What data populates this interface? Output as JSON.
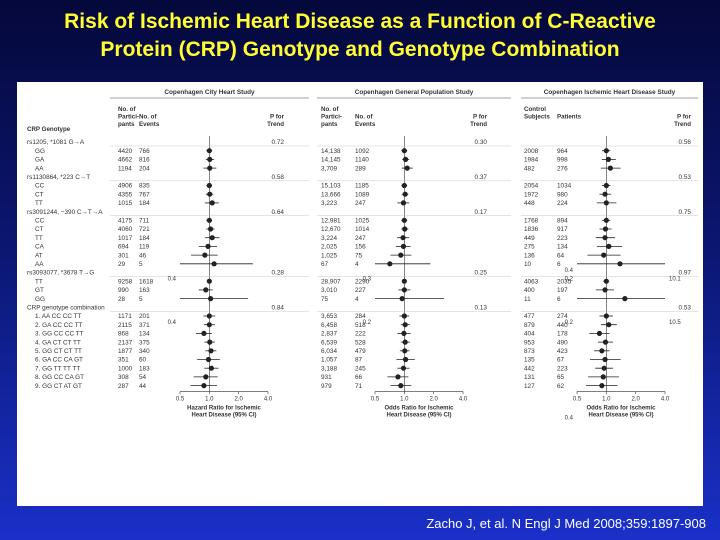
{
  "title": {
    "line1": "Risk of Ischemic Heart Disease as a Function of C-Reactive",
    "line2": "Protein (CRP) Genotype and Genotype Combination"
  },
  "citation": "Zacho J, et al. N Engl J Med 2008;359:1897-908",
  "colors": {
    "title": "#ffff33",
    "panel_bg": "#ffffff",
    "point": "#222222",
    "ref_line": "#333333"
  },
  "figure": {
    "row_header": "CRP Genotype",
    "studies": [
      {
        "name": "Copenhagen City Heart Study",
        "col1": [
          "No. of",
          "Partici-",
          "pants"
        ],
        "col2": [
          "No. of",
          "Events"
        ],
        "col3": [
          "P for",
          "Trend"
        ],
        "axis_label": [
          "Hazard Ratio for Ischemic",
          "Heart Disease (95% CI)"
        ],
        "ticks": [
          "0.5",
          "1.0",
          "2.0",
          "4.0"
        ],
        "outside": [
          {
            "row": 15,
            "side": "left",
            "label": "0.4"
          },
          {
            "row": 20,
            "side": "left",
            "label": "0.4"
          }
        ]
      },
      {
        "name": "Copenhagen General Population Study",
        "col1": [
          "No. of",
          "Partici-",
          "pants"
        ],
        "col2": [
          "No. of",
          "Events"
        ],
        "col3": [
          "P for",
          "Trend"
        ],
        "axis_label": [
          "Odds Ratio for Ischemic",
          "Heart Disease (95% CI)"
        ],
        "ticks": [
          "0.5",
          "1.0",
          "2.0",
          "4.0"
        ],
        "outside": [
          {
            "row": 15,
            "side": "left",
            "label": "0.3"
          },
          {
            "row": 20,
            "side": "left",
            "label": "0.2"
          }
        ]
      },
      {
        "name": "Copenhagen Ischemic Heart Disease Study",
        "col1": [
          "Control",
          "Subjects"
        ],
        "col2": [
          "Patients"
        ],
        "col3": [
          "P for",
          "Trend"
        ],
        "axis_label": [
          "Odds Ratio for Ischemic",
          "Heart Disease (95% CI)"
        ],
        "ticks": [
          "0.5",
          "1.0",
          "2.0",
          "4.0"
        ],
        "outside": [
          {
            "row": 14,
            "side": "left",
            "label": "0.4"
          },
          {
            "row": 15,
            "side": "left",
            "label": "0.2"
          },
          {
            "row": 15,
            "side": "right",
            "label": "10.1"
          },
          {
            "row": 20,
            "side": "left",
            "label": "0.2"
          },
          {
            "row": 20,
            "side": "right",
            "label": "10.5"
          },
          {
            "row": 31,
            "side": "left",
            "label": "0.4"
          }
        ]
      }
    ],
    "rows": [
      {
        "label": "rs1205, *1081 G→A",
        "type": "snp",
        "p": [
          "0.72",
          "0.30",
          "0.56"
        ]
      },
      {
        "label": "GG",
        "type": "g",
        "n": [
          [
            "4420",
            "766"
          ],
          [
            "14,138",
            "1092"
          ],
          [
            "2008",
            "964"
          ]
        ],
        "est": [
          1.0,
          1.0,
          1.0
        ],
        "ci": [
          [
            0.93,
            1.07
          ],
          [
            0.93,
            1.07
          ],
          [
            0.9,
            1.1
          ]
        ]
      },
      {
        "label": "GA",
        "type": "g",
        "n": [
          [
            "4662",
            "816"
          ],
          [
            "14,145",
            "1140"
          ],
          [
            "1984",
            "998"
          ]
        ],
        "est": [
          1.01,
          1.03,
          1.05
        ],
        "ci": [
          [
            0.92,
            1.12
          ],
          [
            0.95,
            1.12
          ],
          [
            0.9,
            1.25
          ]
        ]
      },
      {
        "label": "AA",
        "type": "g",
        "n": [
          [
            "1194",
            "204"
          ],
          [
            "3,709",
            "289"
          ],
          [
            "482",
            "276"
          ]
        ],
        "est": [
          1.01,
          1.07,
          1.1
        ],
        "ci": [
          [
            0.87,
            1.18
          ],
          [
            0.94,
            1.22
          ],
          [
            0.88,
            1.4
          ]
        ]
      },
      {
        "label": "rs1130864, *223 C→T",
        "type": "snp",
        "p": [
          "0.58",
          "0.37",
          "0.53"
        ]
      },
      {
        "label": "CC",
        "type": "g",
        "n": [
          [
            "4906",
            "835"
          ],
          [
            "15,103",
            "1185"
          ],
          [
            "2054",
            "1034"
          ]
        ],
        "est": [
          1.0,
          1.0,
          1.0
        ],
        "ci": [
          [
            0.93,
            1.07
          ],
          [
            0.93,
            1.07
          ],
          [
            0.9,
            1.1
          ]
        ]
      },
      {
        "label": "CT",
        "type": "g",
        "n": [
          [
            "4355",
            "767"
          ],
          [
            "13,666",
            "1089"
          ],
          [
            "1972",
            "980"
          ]
        ],
        "est": [
          1.01,
          1.02,
          0.97
        ],
        "ci": [
          [
            0.92,
            1.1
          ],
          [
            0.94,
            1.1
          ],
          [
            0.85,
            1.12
          ]
        ]
      },
      {
        "label": "TT",
        "type": "g",
        "n": [
          [
            "1015",
            "184"
          ],
          [
            "3,223",
            "247"
          ],
          [
            "448",
            "224"
          ]
        ],
        "est": [
          1.07,
          0.98,
          1.0
        ],
        "ci": [
          [
            0.9,
            1.25
          ],
          [
            0.85,
            1.12
          ],
          [
            0.8,
            1.27
          ]
        ]
      },
      {
        "label": "rs3091244, −390 C→T→A",
        "type": "snp",
        "p": [
          "0.64",
          "0.17",
          "0.75"
        ]
      },
      {
        "label": "CC",
        "type": "g",
        "n": [
          [
            "4175",
            "711"
          ],
          [
            "12,981",
            "1025"
          ],
          [
            "1768",
            "894"
          ]
        ],
        "est": [
          1.0,
          1.0,
          1.0
        ],
        "ci": [
          [
            0.93,
            1.07
          ],
          [
            0.93,
            1.07
          ],
          [
            0.9,
            1.1
          ]
        ]
      },
      {
        "label": "CT",
        "type": "g",
        "n": [
          [
            "4060",
            "721"
          ],
          [
            "12,670",
            "1014"
          ],
          [
            "1836",
            "917"
          ]
        ],
        "est": [
          1.03,
          1.01,
          0.98
        ],
        "ci": [
          [
            0.93,
            1.13
          ],
          [
            0.93,
            1.1
          ],
          [
            0.85,
            1.13
          ]
        ]
      },
      {
        "label": "TT",
        "type": "g",
        "n": [
          [
            "1017",
            "184"
          ],
          [
            "3,224",
            "247"
          ],
          [
            "449",
            "223"
          ]
        ],
        "est": [
          1.07,
          0.97,
          0.97
        ],
        "ci": [
          [
            0.9,
            1.27
          ],
          [
            0.84,
            1.12
          ],
          [
            0.78,
            1.23
          ]
        ]
      },
      {
        "label": "CA",
        "type": "g",
        "n": [
          [
            "694",
            "119"
          ],
          [
            "2,025",
            "156"
          ],
          [
            "275",
            "134"
          ]
        ],
        "est": [
          0.97,
          0.98,
          1.06
        ],
        "ci": [
          [
            0.78,
            1.2
          ],
          [
            0.82,
            1.16
          ],
          [
            0.8,
            1.45
          ]
        ]
      },
      {
        "label": "AT",
        "type": "g",
        "n": [
          [
            "301",
            "46"
          ],
          [
            "1,025",
            "75"
          ],
          [
            "136",
            "64"
          ]
        ],
        "est": [
          0.9,
          0.92,
          0.94
        ],
        "ci": [
          [
            0.65,
            1.22
          ],
          [
            0.72,
            1.18
          ],
          [
            0.64,
            1.4
          ]
        ]
      },
      {
        "label": "AA",
        "type": "g",
        "n": [
          [
            "29",
            "5"
          ],
          [
            "67",
            "4"
          ],
          [
            "10",
            "6"
          ]
        ],
        "est": [
          1.12,
          0.71,
          1.38
        ],
        "ci": [
          [
            0.45,
            2.8
          ],
          [
            0.27,
            1.85
          ],
          [
            0.4,
            4.9
          ]
        ]
      },
      {
        "label": "rs3093077, *3678 T→G",
        "type": "snp",
        "p": [
          "0.28",
          "0.25",
          "0.97"
        ]
      },
      {
        "label": "TT",
        "type": "g",
        "n": [
          [
            "9258",
            "1618"
          ],
          [
            "28,907",
            "2290"
          ],
          [
            "4063",
            "2035"
          ]
        ],
        "est": [
          1.0,
          1.0,
          1.0
        ],
        "ci": [
          [
            0.95,
            1.05
          ],
          [
            0.95,
            1.05
          ],
          [
            0.93,
            1.07
          ]
        ]
      },
      {
        "label": "GT",
        "type": "g",
        "n": [
          [
            "990",
            "163"
          ],
          [
            "3,010",
            "227"
          ],
          [
            "400",
            "197"
          ]
        ],
        "est": [
          0.92,
          1.0,
          0.97
        ],
        "ci": [
          [
            0.78,
            1.08
          ],
          [
            0.87,
            1.15
          ],
          [
            0.78,
            1.2
          ]
        ]
      },
      {
        "label": "GG",
        "type": "g",
        "n": [
          [
            "28",
            "5"
          ],
          [
            "75",
            "4"
          ],
          [
            "11",
            "6"
          ]
        ],
        "est": [
          1.03,
          0.95,
          1.55
        ],
        "ci": [
          [
            0.42,
            2.5
          ],
          [
            0.36,
            2.55
          ],
          [
            0.4,
            5.5
          ]
        ]
      },
      {
        "label": "CRP genotype combination",
        "type": "snp",
        "p": [
          "0.84",
          "0.13",
          "0.53"
        ]
      },
      {
        "label": "1. AA CC CC TT",
        "type": "g",
        "n": [
          [
            "1171",
            "201"
          ],
          [
            "3,653",
            "284"
          ],
          [
            "477",
            "274"
          ]
        ],
        "est": [
          1.0,
          1.0,
          1.0
        ],
        "ci": [
          [
            0.87,
            1.15
          ],
          [
            0.89,
            1.12
          ],
          [
            0.85,
            1.17
          ]
        ]
      },
      {
        "label": "2. GA CC CC TT",
        "type": "g",
        "n": [
          [
            "2115",
            "371"
          ],
          [
            "6,458",
            "518"
          ],
          [
            "879",
            "440"
          ]
        ],
        "est": [
          1.0,
          1.02,
          1.06
        ],
        "ci": [
          [
            0.88,
            1.14
          ],
          [
            0.92,
            1.14
          ],
          [
            0.88,
            1.28
          ]
        ]
      },
      {
        "label": "3. GG CC CC TT",
        "type": "g",
        "n": [
          [
            "868",
            "134"
          ],
          [
            "2,837",
            "222"
          ],
          [
            "404",
            "178"
          ]
        ],
        "est": [
          0.88,
          0.99,
          0.85
        ],
        "ci": [
          [
            0.73,
            1.06
          ],
          [
            0.85,
            1.16
          ],
          [
            0.67,
            1.08
          ]
        ]
      },
      {
        "label": "4. GA CT CT TT",
        "type": "g",
        "n": [
          [
            "2137",
            "375"
          ],
          [
            "6,539",
            "528"
          ],
          [
            "953",
            "490"
          ]
        ],
        "est": [
          1.01,
          1.02,
          0.98
        ],
        "ci": [
          [
            0.89,
            1.14
          ],
          [
            0.92,
            1.14
          ],
          [
            0.82,
            1.17
          ]
        ]
      },
      {
        "label": "5. GG CT CT TT",
        "type": "g",
        "n": [
          [
            "1877",
            "340"
          ],
          [
            "6,034",
            "479"
          ],
          [
            "873",
            "423"
          ]
        ],
        "est": [
          1.04,
          1.01,
          0.9
        ],
        "ci": [
          [
            0.91,
            1.18
          ],
          [
            0.9,
            1.13
          ],
          [
            0.75,
            1.08
          ]
        ]
      },
      {
        "label": "6. GA CC CA GT",
        "type": "g",
        "n": [
          [
            "351",
            "60"
          ],
          [
            "1,057",
            "87"
          ],
          [
            "135",
            "67"
          ]
        ],
        "est": [
          0.98,
          1.03,
          0.97
        ],
        "ci": [
          [
            0.75,
            1.28
          ],
          [
            0.83,
            1.28
          ],
          [
            0.68,
            1.4
          ]
        ]
      },
      {
        "label": "7. GG TT TT TT",
        "type": "g",
        "n": [
          [
            "1000",
            "183"
          ],
          [
            "3,188",
            "245"
          ],
          [
            "442",
            "223"
          ]
        ],
        "est": [
          1.05,
          0.98,
          0.95
        ],
        "ci": [
          [
            0.89,
            1.24
          ],
          [
            0.85,
            1.13
          ],
          [
            0.77,
            1.17
          ]
        ]
      },
      {
        "label": "8. GG CC CA GT",
        "type": "g",
        "n": [
          [
            "308",
            "54"
          ],
          [
            "931",
            "66"
          ],
          [
            "131",
            "65"
          ]
        ],
        "est": [
          0.92,
          0.86,
          0.93
        ],
        "ci": [
          [
            0.69,
            1.22
          ],
          [
            0.67,
            1.1
          ],
          [
            0.65,
            1.35
          ]
        ]
      },
      {
        "label": "9. GG CT AT GT",
        "type": "g",
        "n": [
          [
            "287",
            "44"
          ],
          [
            "979",
            "71"
          ],
          [
            "127",
            "62"
          ]
        ],
        "est": [
          0.88,
          0.92,
          0.9
        ],
        "ci": [
          [
            0.64,
            1.2
          ],
          [
            0.72,
            1.18
          ],
          [
            0.62,
            1.3
          ]
        ]
      }
    ]
  }
}
